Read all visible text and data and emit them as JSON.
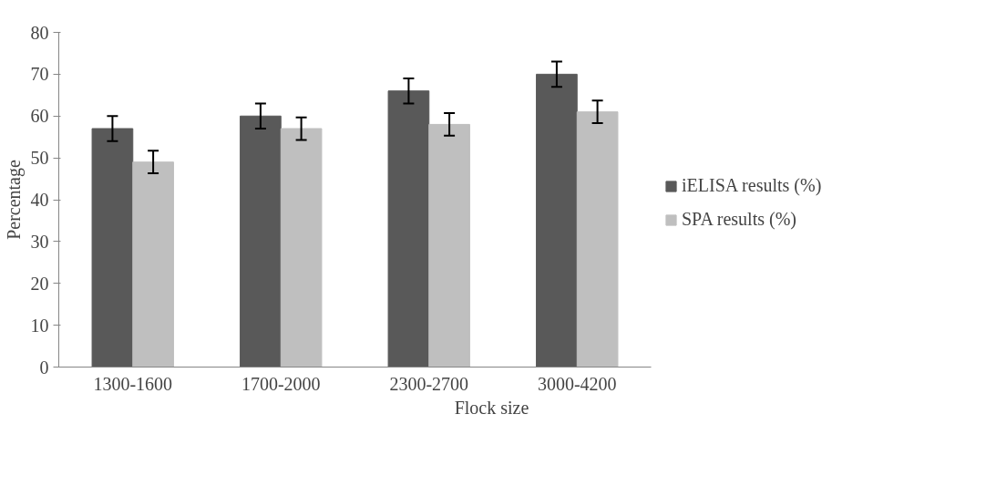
{
  "chart_data": {
    "type": "bar",
    "xlabel": "Flock size",
    "ylabel": "Percentage",
    "categories": [
      "1300-1600",
      "1700-2000",
      "2300-2700",
      "3000-4200"
    ],
    "series": [
      {
        "name": "iELISA results (%)",
        "color": "#595959",
        "values": [
          57,
          60,
          66,
          70
        ],
        "errors": [
          3,
          3,
          3,
          3
        ]
      },
      {
        "name": "SPA results (%)",
        "color": "#bfbfbf",
        "values": [
          49,
          57,
          58,
          61
        ],
        "errors": [
          2.7,
          2.7,
          2.7,
          2.7
        ]
      }
    ],
    "ylim": [
      0,
      80
    ],
    "yticks": [
      0,
      10,
      20,
      30,
      40,
      50,
      60,
      70,
      80
    ],
    "grid": false,
    "legend": "right"
  }
}
